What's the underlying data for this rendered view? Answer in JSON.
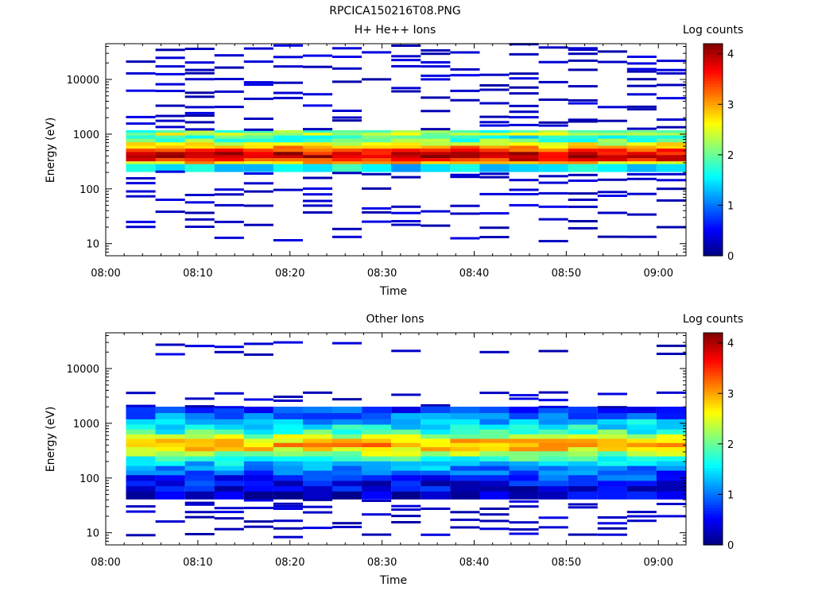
{
  "figure_title": "RPCICA150216T08.PNG",
  "chart_data": [
    {
      "type": "heatmap",
      "title": "H+ He++ Ions",
      "xlabel": "Time",
      "ylabel": "Energy (eV)",
      "colorbar_label": "Log counts",
      "x_ticks": [
        "08:00",
        "08:10",
        "08:20",
        "08:30",
        "08:40",
        "08:50",
        "09:00"
      ],
      "x_range_minutes": [
        0,
        63
      ],
      "y_scale": "log",
      "y_range": [
        6,
        45000
      ],
      "y_ticks": [
        "10",
        "100",
        "1000",
        "10000"
      ],
      "y_tick_values": [
        10,
        100,
        1000,
        10000
      ],
      "colorbar_ticks": [
        "0",
        "1",
        "2",
        "3",
        "4"
      ],
      "colorbar_range": [
        0,
        4.2
      ],
      "colormap": "jet",
      "time_bins_start_minutes": [
        2.2,
        5.4,
        8.6,
        11.8,
        15.0,
        18.2,
        21.4,
        24.6,
        27.8,
        31.0,
        34.2,
        37.4,
        40.6,
        43.8,
        47.0,
        50.2,
        53.4,
        56.6,
        59.8
      ],
      "time_bin_width_minutes": 3.2,
      "band": [
        {
          "energy": 1000,
          "level": 2.0
        },
        {
          "energy": 900,
          "level": 2.4
        },
        {
          "energy": 800,
          "level": 1.7
        },
        {
          "energy": 700,
          "level": 2.0
        },
        {
          "energy": 600,
          "level": 2.5
        },
        {
          "energy": 520,
          "level": 3.0
        },
        {
          "energy": 460,
          "level": 3.4
        },
        {
          "energy": 400,
          "level": 3.8
        },
        {
          "energy": 350,
          "level": 3.9
        },
        {
          "energy": 310,
          "level": 3.6
        },
        {
          "energy": 270,
          "level": 2.8
        },
        {
          "energy": 240,
          "level": 1.5
        }
      ],
      "noise_energies": [
        12,
        20,
        25,
        35,
        45,
        60,
        75,
        95,
        130,
        160,
        190,
        1300,
        1600,
        2000,
        2600,
        3400,
        4500,
        5800,
        7500,
        9500,
        12500,
        16000,
        21000,
        27000,
        34000,
        40000
      ],
      "noise_level": 0.15
    },
    {
      "type": "heatmap",
      "title": "Other Ions",
      "xlabel": "Time",
      "ylabel": "Energy (eV)",
      "colorbar_label": "Log counts",
      "x_ticks": [
        "08:00",
        "08:10",
        "08:20",
        "08:30",
        "08:40",
        "08:50",
        "09:00"
      ],
      "x_range_minutes": [
        0,
        63
      ],
      "y_scale": "log",
      "y_range": [
        6,
        45000
      ],
      "y_ticks": [
        "10",
        "100",
        "1000",
        "10000"
      ],
      "y_tick_values": [
        10,
        100,
        1000,
        10000
      ],
      "colorbar_ticks": [
        "0",
        "1",
        "2",
        "3",
        "4"
      ],
      "colorbar_range": [
        0,
        4.2
      ],
      "colormap": "jet",
      "time_bins_start_minutes": [
        2.2,
        5.4,
        8.6,
        11.8,
        15.0,
        18.2,
        21.4,
        24.6,
        27.8,
        31.0,
        34.2,
        37.4,
        40.6,
        43.8,
        47.0,
        50.2,
        53.4,
        56.6,
        59.8
      ],
      "time_bin_width_minutes": 3.2,
      "band": [
        {
          "energy": 1700,
          "level": 0.7
        },
        {
          "energy": 1300,
          "level": 1.0
        },
        {
          "energy": 1000,
          "level": 1.3
        },
        {
          "energy": 800,
          "level": 1.5
        },
        {
          "energy": 650,
          "level": 1.8
        },
        {
          "energy": 530,
          "level": 2.3
        },
        {
          "energy": 440,
          "level": 2.8
        },
        {
          "energy": 370,
          "level": 3.0
        },
        {
          "energy": 310,
          "level": 2.7
        },
        {
          "energy": 260,
          "level": 2.2
        },
        {
          "energy": 210,
          "level": 1.7
        },
        {
          "energy": 170,
          "level": 1.4
        },
        {
          "energy": 140,
          "level": 1.1
        },
        {
          "energy": 115,
          "level": 0.9
        },
        {
          "energy": 95,
          "level": 0.7
        },
        {
          "energy": 75,
          "level": 0.5
        },
        {
          "energy": 60,
          "level": 0.4
        },
        {
          "energy": 48,
          "level": 0.3
        }
      ],
      "noise_energies": [
        9,
        12,
        16,
        20,
        25,
        30,
        36,
        2100,
        2600,
        3300,
        19000,
        27000
      ],
      "noise_level": 0.15
    }
  ]
}
